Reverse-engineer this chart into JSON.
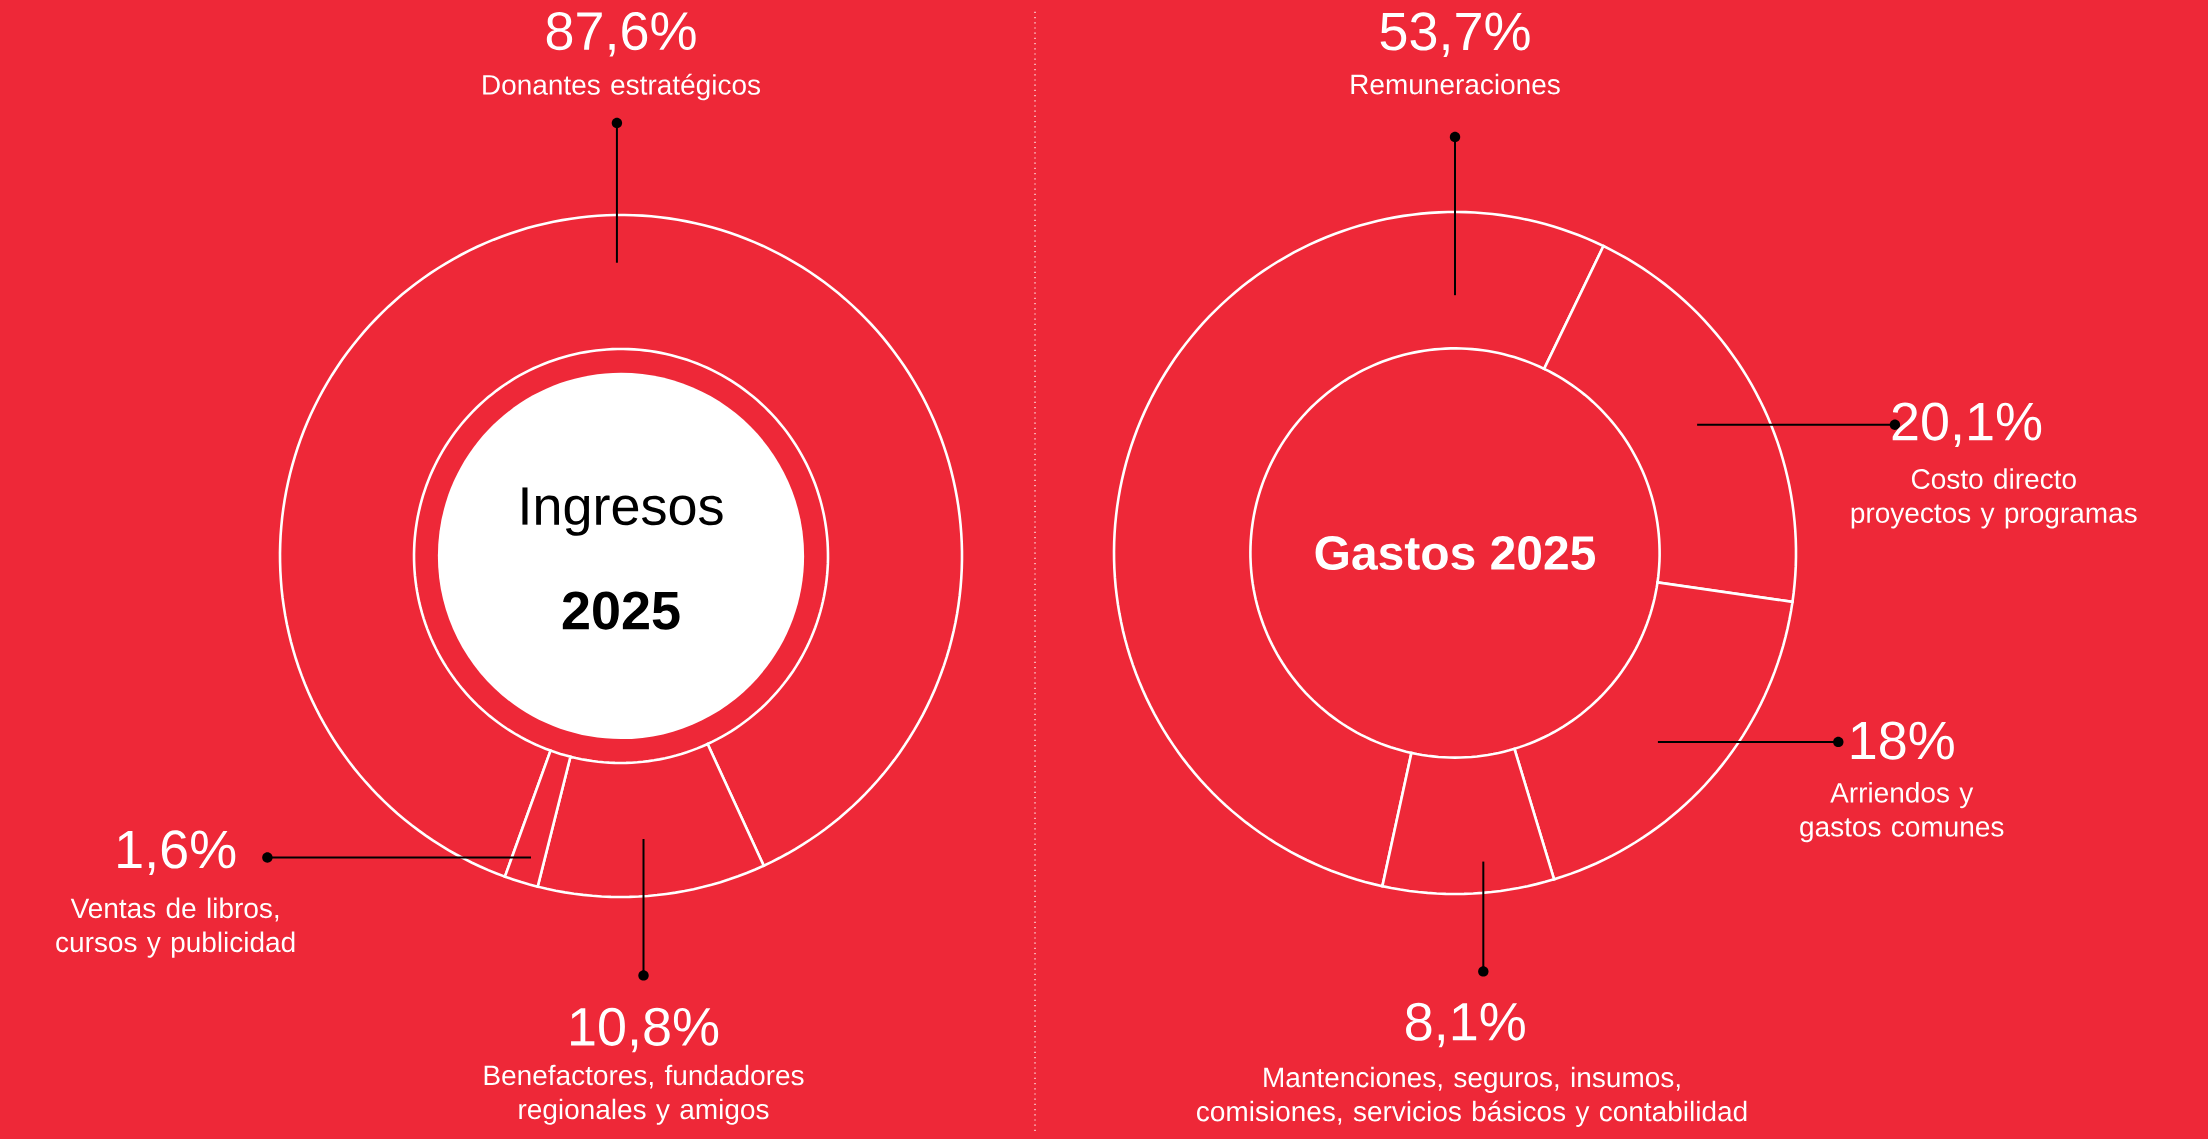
{
  "chart_data": [
    {
      "type": "donut",
      "title": "Ingresos",
      "subtitle": "2025",
      "categories": [
        "Donantes estratégicos",
        "Benefactores, fundadores regionales y amigos",
        "Ventas de libros, cursos y publicidad"
      ],
      "values": [
        87.6,
        10.8,
        1.6
      ],
      "value_labels": [
        "87,6%",
        "10,8%",
        "1,6%"
      ],
      "colors": [
        "#ee2838",
        "#ee2838",
        "#ee2838"
      ]
    },
    {
      "type": "donut",
      "title": "Gastos 2025",
      "categories": [
        "Remuneraciones",
        "Costo directo proyectos y programas",
        "Arriendos y gastos comunes",
        "Mantenciones, seguros, insumos, comisiones, servicios básicos y contabilidad"
      ],
      "values": [
        53.7,
        20.1,
        18,
        8.1
      ],
      "value_labels": [
        "53,7%",
        "20,1%",
        "18%",
        "8,1%"
      ],
      "colors": [
        "#ee2838",
        "#ee2838",
        "#ee2838",
        "#ee2838"
      ]
    }
  ]
}
